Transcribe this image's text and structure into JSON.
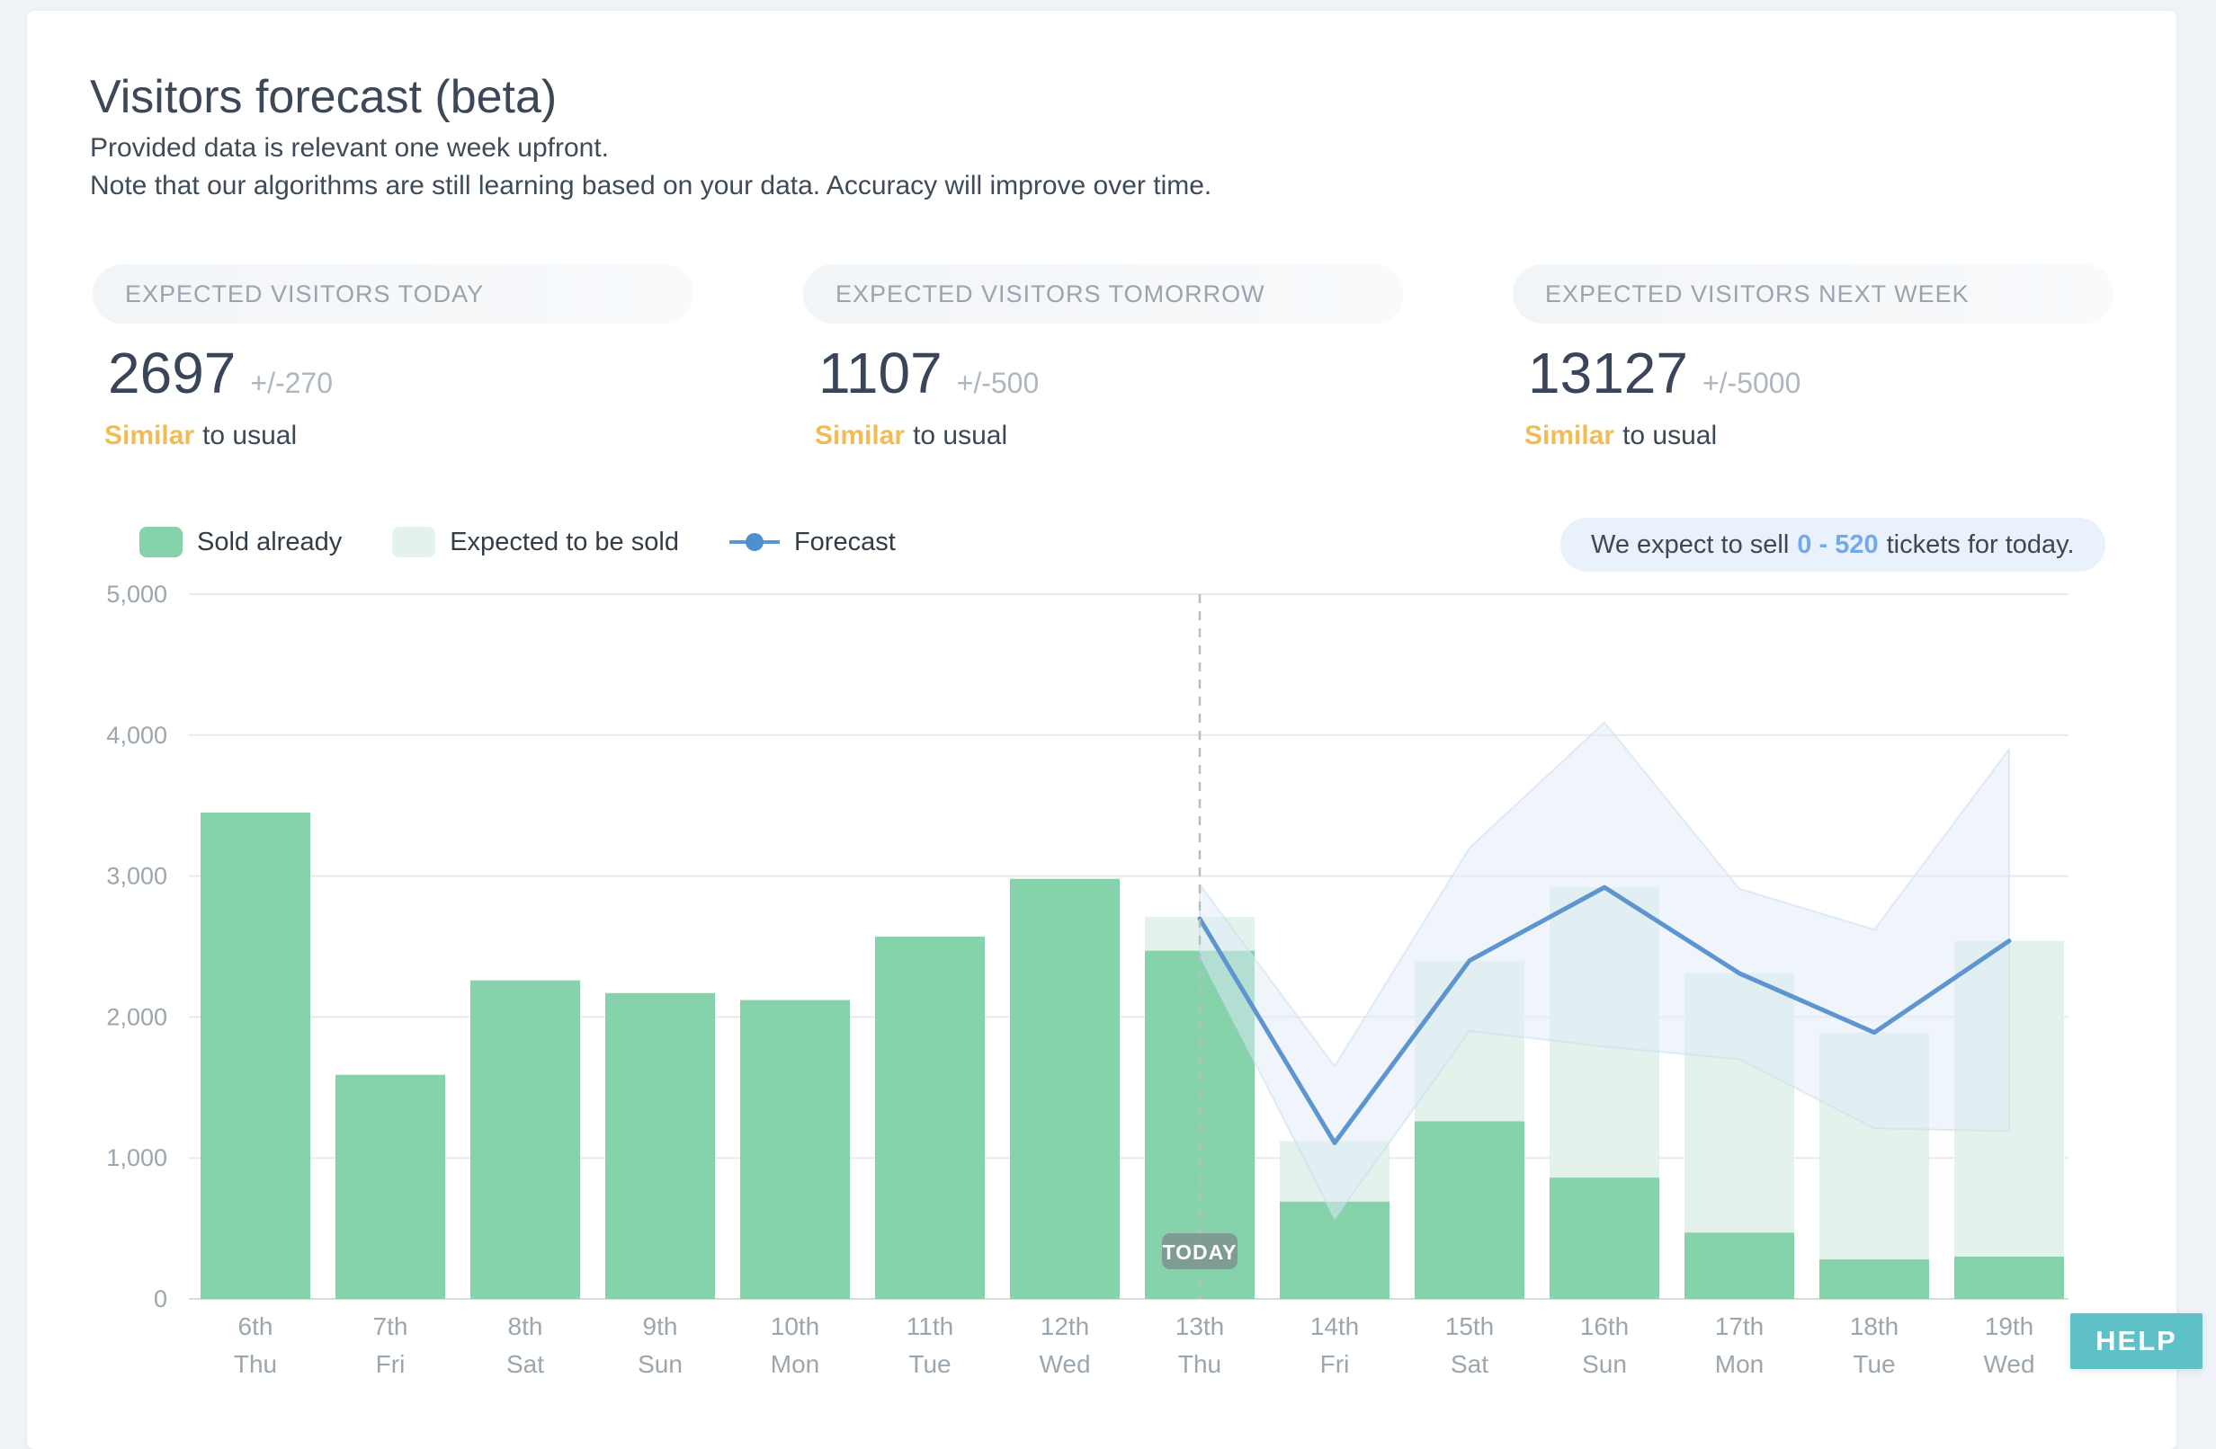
{
  "page": {
    "title": "Visitors forecast (beta)",
    "subtitle1": "Provided data is relevant one week upfront.",
    "subtitle2": "Note that our algorithms are still learning based on your data. Accuracy will improve over time."
  },
  "stats": [
    {
      "label": "EXPECTED VISITORS TODAY",
      "value": "2697",
      "tolerance": "+/-270",
      "qualifier": "Similar",
      "qualifier_rest": "to usual"
    },
    {
      "label": "EXPECTED VISITORS TOMORROW",
      "value": "1107",
      "tolerance": "+/-500",
      "qualifier": "Similar",
      "qualifier_rest": "to usual"
    },
    {
      "label": "EXPECTED VISITORS NEXT WEEK",
      "value": "13127",
      "tolerance": "+/-5000",
      "qualifier": "Similar",
      "qualifier_rest": "to usual"
    }
  ],
  "legend": {
    "sold": "Sold already",
    "expected": "Expected to be sold",
    "forecast": "Forecast"
  },
  "note": {
    "prefix": "We expect to sell",
    "highlight": "0 - 520",
    "suffix": "tickets for today."
  },
  "help": {
    "label": "HELP"
  },
  "colors": {
    "sold_green": "#85d2ab",
    "expected_green": "#e3f3ec",
    "forecast_blue": "#5d95d1",
    "band_blue": "#dfecf8",
    "band_edge": "#c9ddf1",
    "accent_orange": "#f1bc55",
    "accent_blue": "#72a9ea",
    "help_teal": "#5fc1c8",
    "today_line_gray": "#b6bdc3",
    "axis_text_gray": "#9ba6ae"
  },
  "chart_data": {
    "type": "bar+line",
    "title": "",
    "xlabel": "",
    "ylabel": "",
    "ylim": [
      0,
      5000
    ],
    "grid": true,
    "legend_position": "top-left",
    "yticks": [
      "0",
      "1,000",
      "2,000",
      "3,000",
      "4,000",
      "5,000"
    ],
    "categories": [
      {
        "date": "6th",
        "day": "Thu"
      },
      {
        "date": "7th",
        "day": "Fri"
      },
      {
        "date": "8th",
        "day": "Sat"
      },
      {
        "date": "9th",
        "day": "Sun"
      },
      {
        "date": "10th",
        "day": "Mon"
      },
      {
        "date": "11th",
        "day": "Tue"
      },
      {
        "date": "12th",
        "day": "Wed"
      },
      {
        "date": "13th",
        "day": "Thu"
      },
      {
        "date": "14th",
        "day": "Fri"
      },
      {
        "date": "15th",
        "day": "Sat"
      },
      {
        "date": "16th",
        "day": "Sun"
      },
      {
        "date": "17th",
        "day": "Mon"
      },
      {
        "date": "18th",
        "day": "Tue"
      },
      {
        "date": "19th",
        "day": "Wed"
      }
    ],
    "series": [
      {
        "name": "Sold already",
        "type": "bar",
        "color": "#85d2ab",
        "values": [
          3450,
          1590,
          2260,
          2170,
          2120,
          2570,
          2980,
          2470,
          690,
          1260,
          860,
          470,
          280,
          300
        ]
      },
      {
        "name": "Expected to be sold",
        "type": "bar",
        "color": "#e3f3ec",
        "values": [
          null,
          null,
          null,
          null,
          null,
          null,
          null,
          2710,
          1120,
          2400,
          2920,
          2310,
          1890,
          2540
        ]
      },
      {
        "name": "Forecast",
        "type": "line",
        "color": "#5d95d1",
        "values": [
          null,
          null,
          null,
          null,
          null,
          null,
          null,
          2697,
          1107,
          2400,
          2920,
          2310,
          1890,
          2540
        ]
      }
    ],
    "band": {
      "start_index": 7,
      "upper": [
        2940,
        1650,
        3200,
        4090,
        2910,
        2620,
        3900
      ],
      "lower": [
        2440,
        570,
        1900,
        1790,
        1700,
        1210,
        1190
      ]
    },
    "today_index": 7,
    "today_label": "TODAY"
  }
}
